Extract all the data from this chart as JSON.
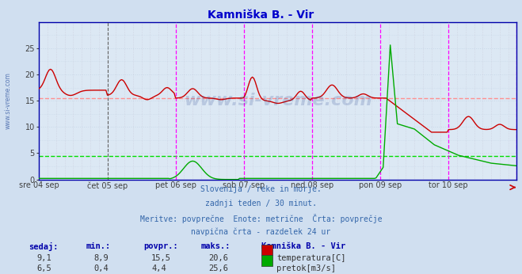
{
  "title": "Kamniška B. - Vir",
  "title_color": "#0000cc",
  "bg_color": "#d0dff0",
  "plot_bg_color": "#dce8f4",
  "grid_color_h": "#c8d8e8",
  "grid_color_v": "#c8c8d8",
  "figsize": [
    6.59,
    3.46
  ],
  "dpi": 100,
  "xlim": [
    0,
    336
  ],
  "ylim": [
    0,
    30
  ],
  "temp_color": "#cc0000",
  "flow_color": "#00aa00",
  "avg_temp_line": 15.5,
  "avg_flow_line": 4.4,
  "temp_avg_color": "#ff9090",
  "flow_avg_color": "#00dd00",
  "vline_magenta_color": "#ff00ff",
  "vline_dark_color": "#606060",
  "tick_labels": [
    "sre 04 sep",
    "čet 05 sep",
    "pet 06 sep",
    "sob 07 sep",
    "ned 08 sep",
    "pon 09 sep",
    "tor 10 sep"
  ],
  "ylabel_color": "#404040",
  "yticks": [
    0,
    5,
    10,
    15,
    20,
    25
  ],
  "subtitle_lines": [
    "Slovenija / reke in morje.",
    "zadnji teden / 30 minut.",
    "Meritve: povprečne  Enote: metrične  Črta: povprečje",
    "navpična črta - razdelek 24 ur"
  ],
  "table_headers": [
    "sedaj:",
    "min.:",
    "povpr.:",
    "maks.:",
    "Kamniška B. - Vir"
  ],
  "table_row1": [
    "9,1",
    "8,9",
    "15,5",
    "20,6",
    "temperatura[C]"
  ],
  "table_row2": [
    "6,5",
    "0,4",
    "4,4",
    "25,6",
    "pretok[m3/s]"
  ],
  "watermark": "www.si-vreme.com",
  "left_watermark": "www.si-vreme.com",
  "axis_color": "#0000aa",
  "arrow_color": "#cc0000"
}
